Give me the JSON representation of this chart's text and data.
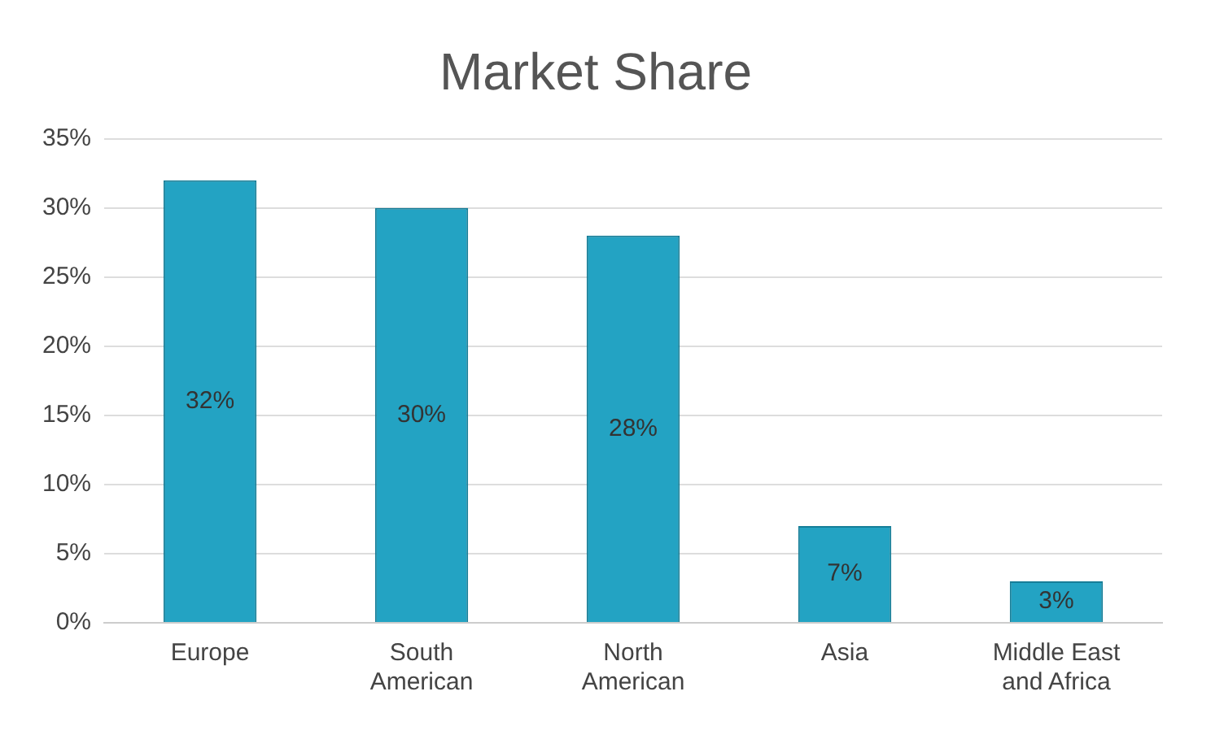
{
  "chart_data": {
    "type": "bar",
    "title": "Market Share",
    "categories": [
      "Europe",
      "South American",
      "North American",
      "Asia",
      "Middle East and Africa"
    ],
    "values": [
      32,
      30,
      28,
      7,
      3
    ],
    "value_labels": [
      "32%",
      "30%",
      "28%",
      "7%",
      "3%"
    ],
    "color": "#23a3c3",
    "ylim": [
      0,
      35
    ],
    "yticks": [
      {
        "value": 0,
        "label": "0%"
      },
      {
        "value": 5,
        "label": "5%"
      },
      {
        "value": 10,
        "label": "10%"
      },
      {
        "value": 15,
        "label": "15%"
      },
      {
        "value": 20,
        "label": "20%"
      },
      {
        "value": 25,
        "label": "25%"
      },
      {
        "value": 30,
        "label": "30%"
      },
      {
        "value": 35,
        "label": "35%"
      }
    ],
    "grid": "y"
  }
}
